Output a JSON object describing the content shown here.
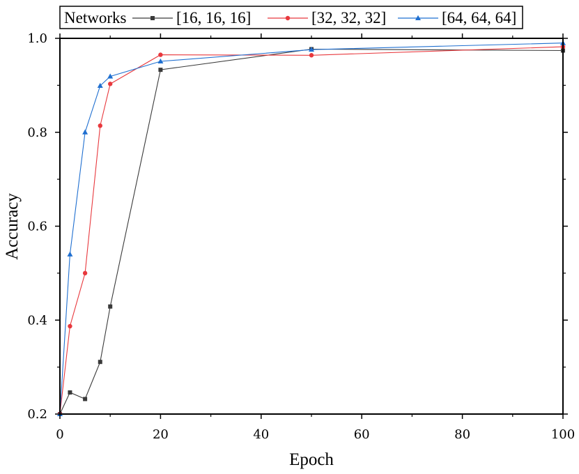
{
  "chart_data": {
    "type": "line",
    "xlabel": "Epoch",
    "ylabel": "Accuracy",
    "xlim": [
      0,
      100
    ],
    "ylim": [
      0.2,
      1.0
    ],
    "x_ticks": [
      "0",
      "20",
      "40",
      "60",
      "80",
      "100"
    ],
    "y_ticks": [
      "0.2",
      "0.4",
      "0.6",
      "0.8",
      "1.0"
    ],
    "legend": {
      "title": "Networks",
      "placement": "top"
    },
    "grid": false,
    "series": [
      {
        "name": "[16, 16, 16]",
        "color": "#3a3a3a",
        "marker": "square",
        "x": [
          0,
          2,
          5,
          8,
          10,
          20,
          50,
          100
        ],
        "y": [
          0.2,
          0.246,
          0.232,
          0.311,
          0.429,
          0.933,
          0.977,
          0.974
        ]
      },
      {
        "name": "[32, 32, 32]",
        "color": "#e8383d",
        "marker": "circle",
        "x": [
          0,
          2,
          5,
          8,
          10,
          20,
          50,
          100
        ],
        "y": [
          0.2,
          0.387,
          0.5,
          0.814,
          0.903,
          0.965,
          0.964,
          0.982
        ]
      },
      {
        "name": "[64, 64, 64]",
        "color": "#1f6fd0",
        "marker": "triangle",
        "x": [
          0,
          2,
          5,
          8,
          10,
          20,
          50,
          100
        ],
        "y": [
          0.2,
          0.54,
          0.8,
          0.899,
          0.919,
          0.951,
          0.976,
          0.99
        ]
      }
    ]
  }
}
